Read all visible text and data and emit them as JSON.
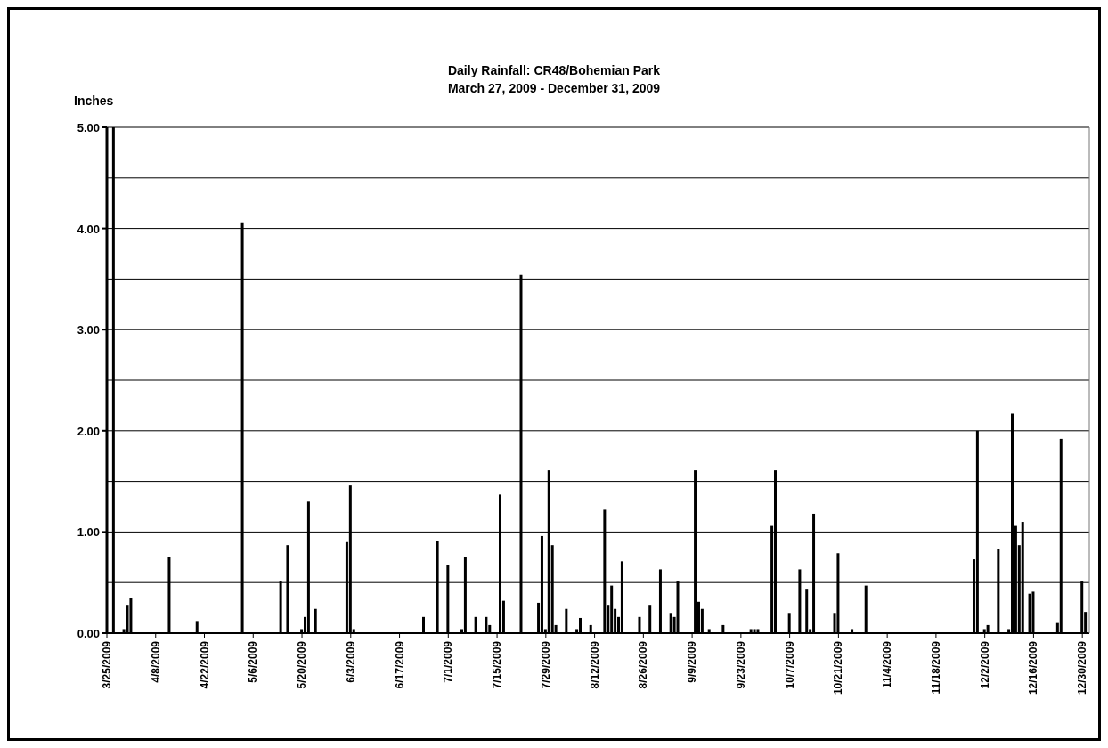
{
  "chart_data": {
    "type": "bar",
    "title": "Daily Rainfall: CR48/Bohemian Park",
    "subtitle": "March 27, 2009 - December 31, 2009",
    "ylabel": "Inches",
    "color": "#000000",
    "x": [
      "2009-03-27",
      "2009-03-30",
      "2009-03-31",
      "2009-04-01",
      "2009-04-12",
      "2009-04-20",
      "2009-05-03",
      "2009-05-14",
      "2009-05-16",
      "2009-05-20",
      "2009-05-21",
      "2009-05-22",
      "2009-05-24",
      "2009-06-02",
      "2009-06-03",
      "2009-06-04",
      "2009-06-24",
      "2009-06-28",
      "2009-07-01",
      "2009-07-05",
      "2009-07-06",
      "2009-07-09",
      "2009-07-12",
      "2009-07-13",
      "2009-07-16",
      "2009-07-17",
      "2009-07-22",
      "2009-07-27",
      "2009-07-28",
      "2009-07-29",
      "2009-07-30",
      "2009-07-31",
      "2009-08-01",
      "2009-08-04",
      "2009-08-07",
      "2009-08-08",
      "2009-08-11",
      "2009-08-15",
      "2009-08-16",
      "2009-08-17",
      "2009-08-18",
      "2009-08-19",
      "2009-08-20",
      "2009-08-25",
      "2009-08-28",
      "2009-08-31",
      "2009-09-03",
      "2009-09-04",
      "2009-09-05",
      "2009-09-10",
      "2009-09-11",
      "2009-09-12",
      "2009-09-14",
      "2009-09-18",
      "2009-09-26",
      "2009-09-27",
      "2009-09-28",
      "2009-10-02",
      "2009-10-03",
      "2009-10-07",
      "2009-10-10",
      "2009-10-12",
      "2009-10-13",
      "2009-10-14",
      "2009-10-20",
      "2009-10-21",
      "2009-10-25",
      "2009-10-29",
      "2009-11-29",
      "2009-11-30",
      "2009-12-02",
      "2009-12-03",
      "2009-12-06",
      "2009-12-09",
      "2009-12-10",
      "2009-12-11",
      "2009-12-12",
      "2009-12-13",
      "2009-12-15",
      "2009-12-16",
      "2009-12-23",
      "2009-12-24",
      "2009-12-30",
      "2009-12-31"
    ],
    "values": [
      5.0,
      0.04,
      0.28,
      0.35,
      0.75,
      0.12,
      4.06,
      0.51,
      0.87,
      0.04,
      0.16,
      1.3,
      0.24,
      0.9,
      1.46,
      0.04,
      0.16,
      0.91,
      0.67,
      0.04,
      0.75,
      0.16,
      0.16,
      0.08,
      1.37,
      0.32,
      3.54,
      0.3,
      0.96,
      0.04,
      1.61,
      0.87,
      0.08,
      0.24,
      0.04,
      0.15,
      0.08,
      1.22,
      0.28,
      0.47,
      0.24,
      0.16,
      0.71,
      0.16,
      0.28,
      0.63,
      0.2,
      0.16,
      0.51,
      1.61,
      0.31,
      0.24,
      0.04,
      0.08,
      0.04,
      0.04,
      0.04,
      1.06,
      1.61,
      0.2,
      0.63,
      0.43,
      0.04,
      1.18,
      0.2,
      0.79,
      0.04,
      0.47,
      0.73,
      2.0,
      0.04,
      0.08,
      0.83,
      0.04,
      2.17,
      1.06,
      0.87,
      1.1,
      0.39,
      0.41,
      0.1,
      1.92,
      0.51,
      0.21
    ],
    "xlim": [
      "2009-03-25",
      "2010-01-01"
    ],
    "xticks": [
      {
        "value": "2009-03-25",
        "label": "3/25/2009"
      },
      {
        "value": "2009-04-08",
        "label": "4/8/2009"
      },
      {
        "value": "2009-04-22",
        "label": "4/22/2009"
      },
      {
        "value": "2009-05-06",
        "label": "5/6/2009"
      },
      {
        "value": "2009-05-20",
        "label": "5/20/2009"
      },
      {
        "value": "2009-06-03",
        "label": "6/3/2009"
      },
      {
        "value": "2009-06-17",
        "label": "6/17/2009"
      },
      {
        "value": "2009-07-01",
        "label": "7/1/2009"
      },
      {
        "value": "2009-07-15",
        "label": "7/15/2009"
      },
      {
        "value": "2009-07-29",
        "label": "7/29/2009"
      },
      {
        "value": "2009-08-12",
        "label": "8/12/2009"
      },
      {
        "value": "2009-08-26",
        "label": "8/26/2009"
      },
      {
        "value": "2009-09-09",
        "label": "9/9/2009"
      },
      {
        "value": "2009-09-23",
        "label": "9/23/2009"
      },
      {
        "value": "2009-10-07",
        "label": "10/7/2009"
      },
      {
        "value": "2009-10-21",
        "label": "10/21/2009"
      },
      {
        "value": "2009-11-04",
        "label": "11/4/2009"
      },
      {
        "value": "2009-11-18",
        "label": "11/18/2009"
      },
      {
        "value": "2009-12-02",
        "label": "12/2/2009"
      },
      {
        "value": "2009-12-16",
        "label": "12/16/2009"
      },
      {
        "value": "2009-12-30",
        "label": "12/30/2009"
      }
    ],
    "ylim": [
      0,
      5
    ],
    "yticks": [
      {
        "value": 0,
        "label": "0.00"
      },
      {
        "value": 0.5,
        "label": null
      },
      {
        "value": 1,
        "label": "1.00"
      },
      {
        "value": 1.5,
        "label": null
      },
      {
        "value": 2,
        "label": "2.00"
      },
      {
        "value": 2.5,
        "label": null
      },
      {
        "value": 3,
        "label": "3.00"
      },
      {
        "value": 3.5,
        "label": null
      },
      {
        "value": 4,
        "label": "4.00"
      },
      {
        "value": 4.5,
        "label": null
      },
      {
        "value": 5,
        "label": "5.00"
      }
    ],
    "grid": "y"
  }
}
